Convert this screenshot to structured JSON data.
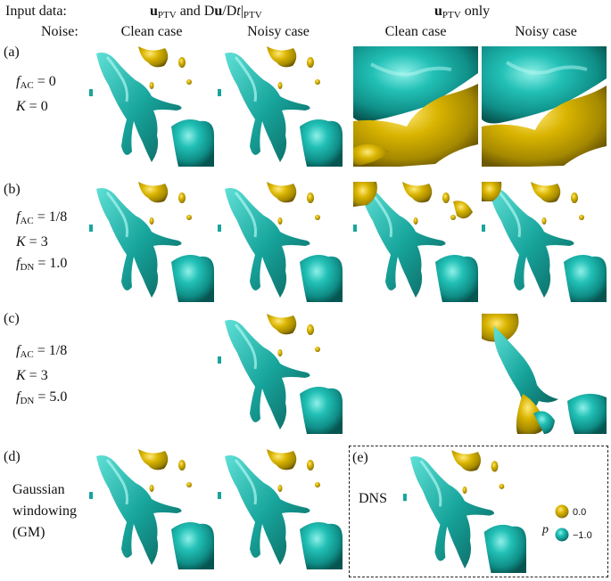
{
  "header": {
    "input_data_label": "Input data:",
    "noise_label": "Noise:",
    "group_left_prefix": "u",
    "group_left_sub": "PTV",
    "group_left_mid": " and D",
    "group_left_bold_u": "u",
    "group_left_dt": "/D",
    "group_left_t": "t",
    "group_left_tail_sub": "PTV",
    "group_right_prefix": "u",
    "group_right_sub": "PTV",
    "group_right_suffix": " only",
    "columns": [
      "Clean case",
      "Noisy case",
      "Clean case",
      "Noisy case"
    ]
  },
  "rows": [
    {
      "label": "(a)",
      "params": [
        {
          "sym": "f",
          "sub": "AC",
          "val": " = 0"
        },
        {
          "sym": "K",
          "sub": "",
          "val": " = 0"
        }
      ]
    },
    {
      "label": "(b)",
      "params": [
        {
          "sym": "f",
          "sub": "AC",
          "val": " = 1/8"
        },
        {
          "sym": "K",
          "sub": "",
          "val": " = 3"
        },
        {
          "sym": "f",
          "sub": "DN",
          "val": " = 1.0"
        }
      ]
    },
    {
      "label": "(c)",
      "params": [
        {
          "sym": "f",
          "sub": "AC",
          "val": " = 1/8"
        },
        {
          "sym": "K",
          "sub": "",
          "val": " = 3"
        },
        {
          "sym": "f",
          "sub": "DN",
          "val": " = 5.0"
        }
      ]
    },
    {
      "label": "(d)",
      "text_lines": [
        "Gaussian",
        "windowing",
        "(GM)"
      ]
    }
  ],
  "dns_panel": {
    "label": "(e)",
    "title": "DNS"
  },
  "legend": {
    "variable": "p",
    "items": [
      {
        "value": "0.0",
        "color": "#d4b000"
      },
      {
        "value": "−1.0",
        "color": "#1aa39a"
      }
    ]
  },
  "colors": {
    "gold": "#d4b000",
    "gold_dark": "#8f7600",
    "teal": "#1ab0a8",
    "teal_dark": "#0b6b66",
    "teal_light": "#7fe3dc"
  }
}
